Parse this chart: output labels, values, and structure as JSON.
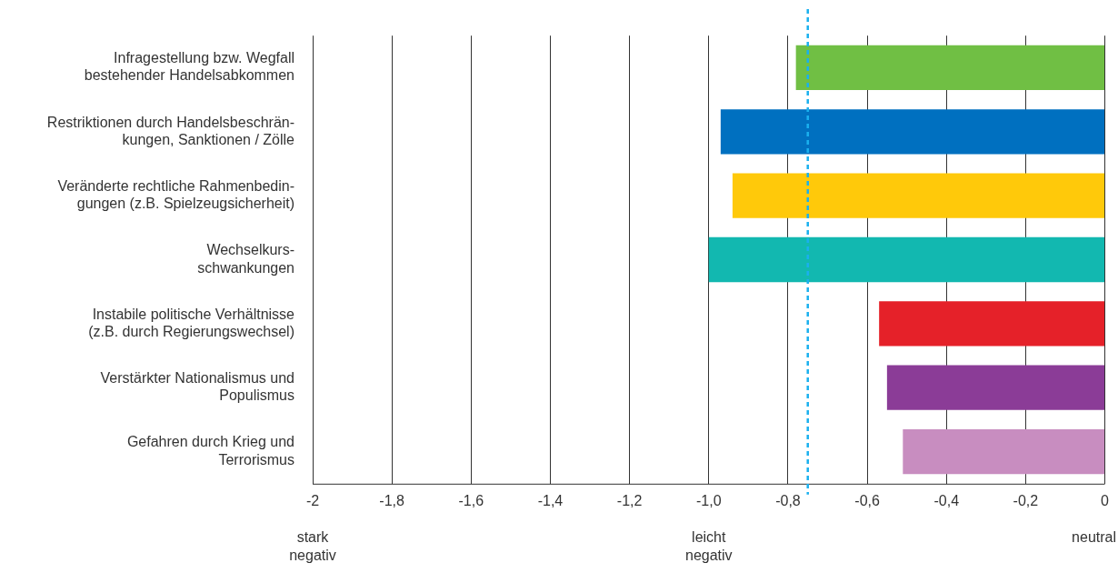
{
  "chart_data": {
    "type": "bar",
    "orientation": "horizontal",
    "categories": [
      "Infragestellung bzw. Wegfall\nbestehender Handelsabkommen",
      "Restriktionen durch Handelsbeschrän-\nkungen, Sanktionen / Zölle",
      "Veränderte rechtliche Rahmenbedin-\ngungen (z.B. Spielzeugsicherheit)",
      "Wechselkurs-\nschwankungen",
      "Instabile politische Verhältnisse\n(z.B. durch Regierungswechsel)",
      "Verstärkter Nationalismus und\nPopulismus",
      "Gefahren durch Krieg und\nTerrorismus"
    ],
    "values": [
      -0.78,
      -0.97,
      -0.94,
      -1.0,
      -0.57,
      -0.55,
      -0.51
    ],
    "colors": [
      "#70bf44",
      "#0070c0",
      "#ffc90a",
      "#12b8b0",
      "#e52129",
      "#8b3c97",
      "#c88dc0"
    ],
    "xlim": [
      -2,
      0
    ],
    "xticks": [
      -2,
      {
        "value": -1.8,
        "label": "-1,8"
      },
      {
        "value": -1.6,
        "label": "-1,6"
      },
      {
        "value": -1.4,
        "label": "-1,4"
      },
      {
        "value": -1.2,
        "label": "-1,2"
      },
      {
        "value": -1,
        "label": "-1,0"
      },
      {
        "value": -0.8,
        "label": "-0,8"
      },
      {
        "value": -0.6,
        "label": "-0,6"
      },
      {
        "value": -0.4,
        "label": "-0,4"
      },
      {
        "value": -0.2,
        "label": "-0,2"
      },
      0
    ],
    "annotations": [
      "stark negativ",
      "leicht negativ",
      "neutral"
    ],
    "ref_lines": [
      {
        "axis": "x",
        "value": -0.75,
        "color": "#1ab0ef",
        "line_style": "dashed"
      }
    ],
    "grid": "x",
    "legend": false
  }
}
